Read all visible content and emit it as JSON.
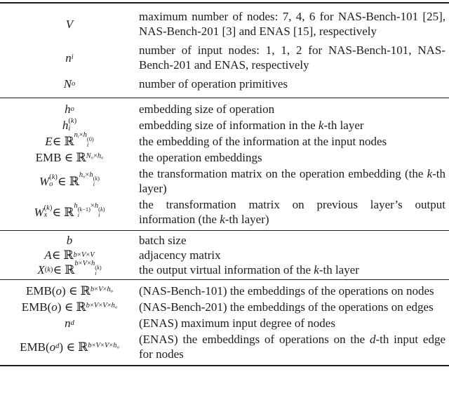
{
  "colors": {
    "background": "#ffffff",
    "text": "#1c1c1c",
    "rule": "#1c1c1c"
  },
  "table": {
    "kind": "paper-notation-table",
    "columns": [
      "notation",
      "description"
    ],
    "sections": [
      {
        "rows": [
          {
            "notation_text": "V",
            "notation_html": "<i>V</i>",
            "description_html": "maximum number of nodes: 7, 4, 6 for NAS-Bench-101 [25], NAS-Bench-201 [3] and ENAS [15], respectively"
          },
          {
            "notation_text": "n_i",
            "notation_html": "<i>n</i><span class=\"sub\"><i>i</i></span>",
            "description_html": "number of input nodes: 1, 1, 2 for NAS-Bench-101, NAS-Bench-201 and ENAS, respectively"
          },
          {
            "notation_text": "N_o",
            "notation_html": "<i>N</i><span class=\"sub\"><i>o</i></span>",
            "description_html": "number of operation primitives"
          }
        ]
      },
      {
        "rows": [
          {
            "notation_text": "h_o",
            "notation_html": "<i>h</i><span class=\"sub\"><i>o</i></span>",
            "description_html": "embedding size of operation"
          },
          {
            "notation_text": "h_i^(k)",
            "notation_html": "<i>h</i><span class=\"ss\"><span class=\"t\">(<i>k</i>)</span><span class=\"b\"><i>i</i></span></span>",
            "description_html": "embedding size of information in the <i>k</i>-th layer"
          },
          {
            "notation_text": "E ∈ R^{n_i × h_i^(0)}",
            "notation_html": "<i>E</i> ∈ ℝ<span class=\"sup\"><i>n</i><span class=\"sub\"><i>i</i></span>×<i>h</i><span class=\"ss\"><span class=\"t\">(0)</span><span class=\"b\"><i>i</i></span></span></span>",
            "description_html": "the embedding of the information at the input nodes"
          },
          {
            "notation_text": "EMB ∈ R^{N_o × h_o}",
            "notation_html": "EMB ∈ ℝ<span class=\"sup\"><i>N</i><span class=\"sub\"><i>o</i></span>×<i>h</i><span class=\"sub\"><i>o</i></span></span>",
            "description_html": "the operation embeddings"
          },
          {
            "notation_text": "W_o^(k) ∈ R^{h_o × h_i^(k)}",
            "notation_html": "<i>W</i><span class=\"ss\"><span class=\"t\">(<i>k</i>)</span><span class=\"b\"><i>o</i></span></span> ∈ ℝ<span class=\"sup\"><i>h</i><span class=\"sub\"><i>o</i></span>×<i>h</i><span class=\"ss\"><span class=\"t\">(<i>k</i>)</span><span class=\"b\"><i>i</i></span></span></span>",
            "description_html": "the transformation matrix on the operation embedding (the <i>k</i>-th layer)"
          },
          {
            "notation_text": "W_x^(k) ∈ R^{h_i^(k−1) × h_i^(k)}",
            "notation_html": "<i>W</i><span class=\"ss\"><span class=\"t\">(<i>k</i>)</span><span class=\"b\"><i>x</i></span></span> ∈ ℝ<span class=\"sup\"><i>h</i><span class=\"ss\"><span class=\"t\">(<i>k</i>−1)</span><span class=\"b\"><i>i</i></span></span>×<i>h</i><span class=\"ss\"><span class=\"t\">(<i>k</i>)</span><span class=\"b\"><i>i</i></span></span></span>",
            "description_html": "the transformation matrix on previous layer’s output information (the <i>k</i>-th layer)"
          }
        ]
      },
      {
        "rows": [
          {
            "notation_text": "b",
            "notation_html": "<i>b</i>",
            "description_html": "batch size"
          },
          {
            "notation_text": "A ∈ R^{b × V × V}",
            "notation_html": "<i>A</i> ∈ ℝ<span class=\"sup\"><i>b</i>×<i>V</i>×<i>V</i></span>",
            "description_html": "adjacency matrix"
          },
          {
            "notation_text": "X^(k) ∈ R^{b × V × h_i^(k)}",
            "notation_html": "<i>X</i><span class=\"sup\">(<i>k</i>)</span> ∈ ℝ<span class=\"sup\"><i>b</i>×<i>V</i>×<i>h</i><span class=\"ss\"><span class=\"t\">(<i>k</i>)</span><span class=\"b\"><i>i</i></span></span></span>",
            "description_html": "the output virtual information of the <i>k</i>-th layer"
          }
        ]
      },
      {
        "rows": [
          {
            "notation_text": "EMB(o) ∈ R^{b × V × h_o}",
            "notation_html": "EMB(<i>o</i>) ∈ ℝ<span class=\"sup\"><i>b</i>×<i>V</i>×<i>h</i><span class=\"sub\"><i>o</i></span></span>",
            "description_html": "(NAS-Bench-101) the embeddings of the operations on nodes"
          },
          {
            "notation_text": "EMB(o) ∈ R^{b × V × V × h_o}",
            "notation_html": "EMB(<i>o</i>) ∈ ℝ<span class=\"sup\"><i>b</i>×<i>V</i>×<i>V</i>×<i>h</i><span class=\"sub\"><i>o</i></span></span>",
            "description_html": "(NAS-Bench-201) the embeddings of the operations on edges"
          },
          {
            "notation_text": "n_d",
            "notation_html": "<i>n</i><span class=\"sub\"><i>d</i></span>",
            "description_html": "(ENAS) maximum input degree of nodes"
          },
          {
            "notation_text": "EMB(o_d) ∈ R^{b × V × V × h_o}",
            "notation_html": "EMB(<i>o</i><span class=\"sub\"><i>d</i></span>) ∈ ℝ<span class=\"sup\"><i>b</i>×<i>V</i>×<i>V</i>×<i>h</i><span class=\"sub\"><i>o</i></span></span>",
            "description_html": "(ENAS) the embeddings of operations on the <i>d</i>-th input edge for nodes"
          }
        ]
      }
    ]
  }
}
